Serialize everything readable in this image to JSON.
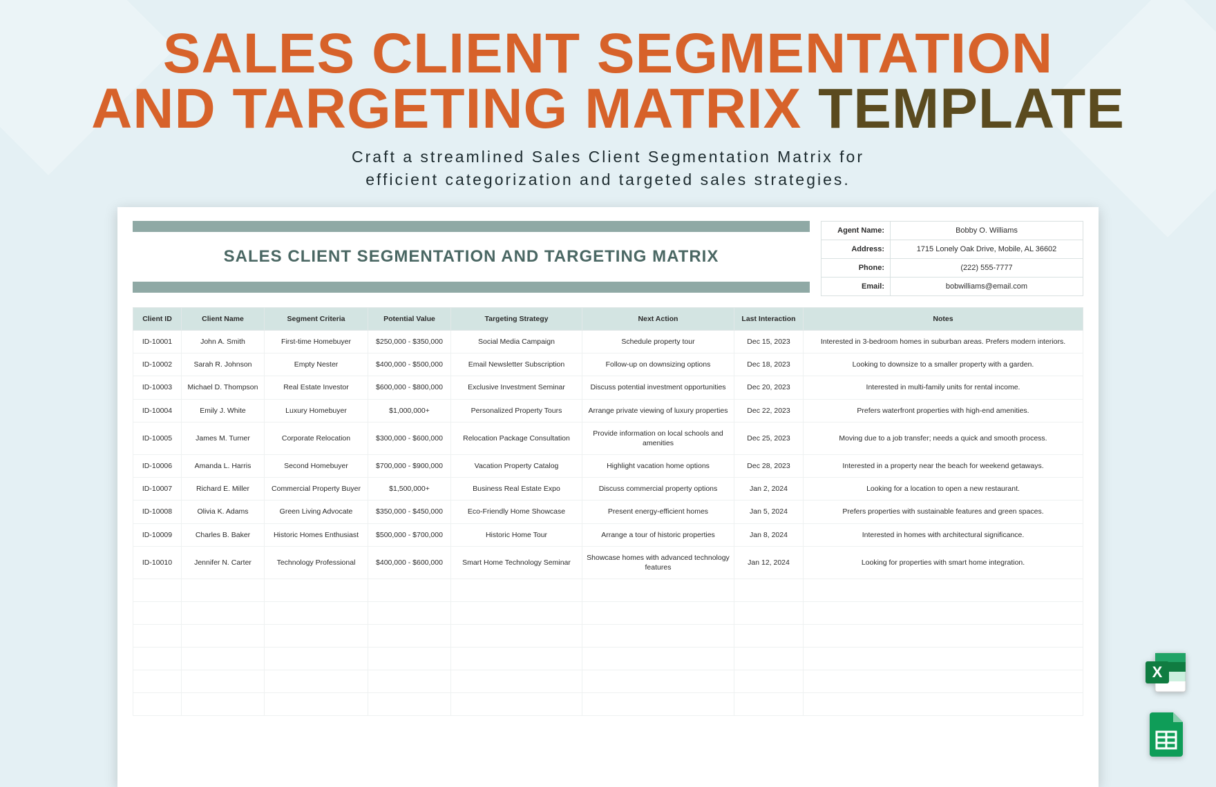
{
  "hero": {
    "line1a": "SALES CLIENT SEGMENTATION",
    "line2a": "AND TARGETING MATRIX ",
    "line2b": "TEMPLATE",
    "subtitle_line1": "Craft a streamlined Sales Client Segmentation Matrix for",
    "subtitle_line2": "efficient categorization and targeted sales strategies.",
    "orange_color": "#d7622a",
    "olive_color": "#5b4b1f",
    "background_color": "#e4f0f4"
  },
  "sheet": {
    "title": "SALES CLIENT SEGMENTATION AND TARGETING MATRIX",
    "title_bar_color": "#8fa9a5",
    "title_text_color": "#4a6763",
    "header_bg": "#d3e4e2"
  },
  "agent": {
    "name_label": "Agent Name:",
    "name_value": "Bobby O. Williams",
    "address_label": "Address:",
    "address_value": "1715 Lonely Oak Drive, Mobile, AL 36602",
    "phone_label": "Phone:",
    "phone_value": "(222) 555-7777",
    "email_label": "Email:",
    "email_value": "bobwilliams@email.com"
  },
  "columns": {
    "c0": "Client ID",
    "c1": "Client Name",
    "c2": "Segment Criteria",
    "c3": "Potential Value",
    "c4": "Targeting Strategy",
    "c5": "Next Action",
    "c6": "Last Interaction",
    "c7": "Notes"
  },
  "rows": [
    {
      "id": "ID-10001",
      "name": "John A. Smith",
      "seg": "First-time Homebuyer",
      "val": "$250,000 - $350,000",
      "strat": "Social Media Campaign",
      "action": "Schedule property tour",
      "date": "Dec 15, 2023",
      "notes": "Interested in 3-bedroom homes in suburban areas. Prefers modern interiors."
    },
    {
      "id": "ID-10002",
      "name": "Sarah R. Johnson",
      "seg": "Empty Nester",
      "val": "$400,000 - $500,000",
      "strat": "Email Newsletter Subscription",
      "action": "Follow-up on downsizing options",
      "date": "Dec 18, 2023",
      "notes": "Looking to downsize to a smaller property with a garden."
    },
    {
      "id": "ID-10003",
      "name": "Michael D. Thompson",
      "seg": "Real Estate Investor",
      "val": "$600,000 - $800,000",
      "strat": "Exclusive Investment Seminar",
      "action": "Discuss potential investment opportunities",
      "date": "Dec 20, 2023",
      "notes": "Interested in multi-family units for rental income."
    },
    {
      "id": "ID-10004",
      "name": "Emily J. White",
      "seg": "Luxury Homebuyer",
      "val": "$1,000,000+",
      "strat": "Personalized Property Tours",
      "action": "Arrange private viewing of luxury properties",
      "date": "Dec 22, 2023",
      "notes": "Prefers waterfront properties with high-end amenities."
    },
    {
      "id": "ID-10005",
      "name": "James M. Turner",
      "seg": "Corporate Relocation",
      "val": "$300,000 - $600,000",
      "strat": "Relocation Package Consultation",
      "action": "Provide information on local schools and amenities",
      "date": "Dec 25, 2023",
      "notes": "Moving due to a job transfer; needs a quick and smooth process."
    },
    {
      "id": "ID-10006",
      "name": "Amanda L. Harris",
      "seg": "Second Homebuyer",
      "val": "$700,000 - $900,000",
      "strat": "Vacation Property Catalog",
      "action": "Highlight vacation home options",
      "date": "Dec 28, 2023",
      "notes": "Interested in a property near the beach for weekend getaways."
    },
    {
      "id": "ID-10007",
      "name": "Richard E. Miller",
      "seg": "Commercial Property Buyer",
      "val": "$1,500,000+",
      "strat": "Business Real Estate Expo",
      "action": "Discuss commercial property options",
      "date": "Jan 2, 2024",
      "notes": "Looking for a location to open a new restaurant."
    },
    {
      "id": "ID-10008",
      "name": "Olivia K. Adams",
      "seg": "Green Living Advocate",
      "val": "$350,000 - $450,000",
      "strat": "Eco-Friendly Home Showcase",
      "action": "Present energy-efficient homes",
      "date": "Jan 5, 2024",
      "notes": "Prefers properties with sustainable features and green spaces."
    },
    {
      "id": "ID-10009",
      "name": "Charles B. Baker",
      "seg": "Historic Homes Enthusiast",
      "val": "$500,000 - $700,000",
      "strat": "Historic Home Tour",
      "action": "Arrange a tour of historic properties",
      "date": "Jan 8, 2024",
      "notes": "Interested in homes with architectural significance."
    },
    {
      "id": "ID-10010",
      "name": "Jennifer N. Carter",
      "seg": "Technology Professional",
      "val": "$400,000 - $600,000",
      "strat": "Smart Home Technology Seminar",
      "action": "Showcase homes with advanced technology features",
      "date": "Jan 12, 2024",
      "notes": "Looking for properties with smart home integration."
    }
  ],
  "icons": {
    "excel": "excel-icon",
    "sheets": "sheets-icon",
    "excel_color": "#107c41",
    "sheets_color": "#0f9d58"
  }
}
